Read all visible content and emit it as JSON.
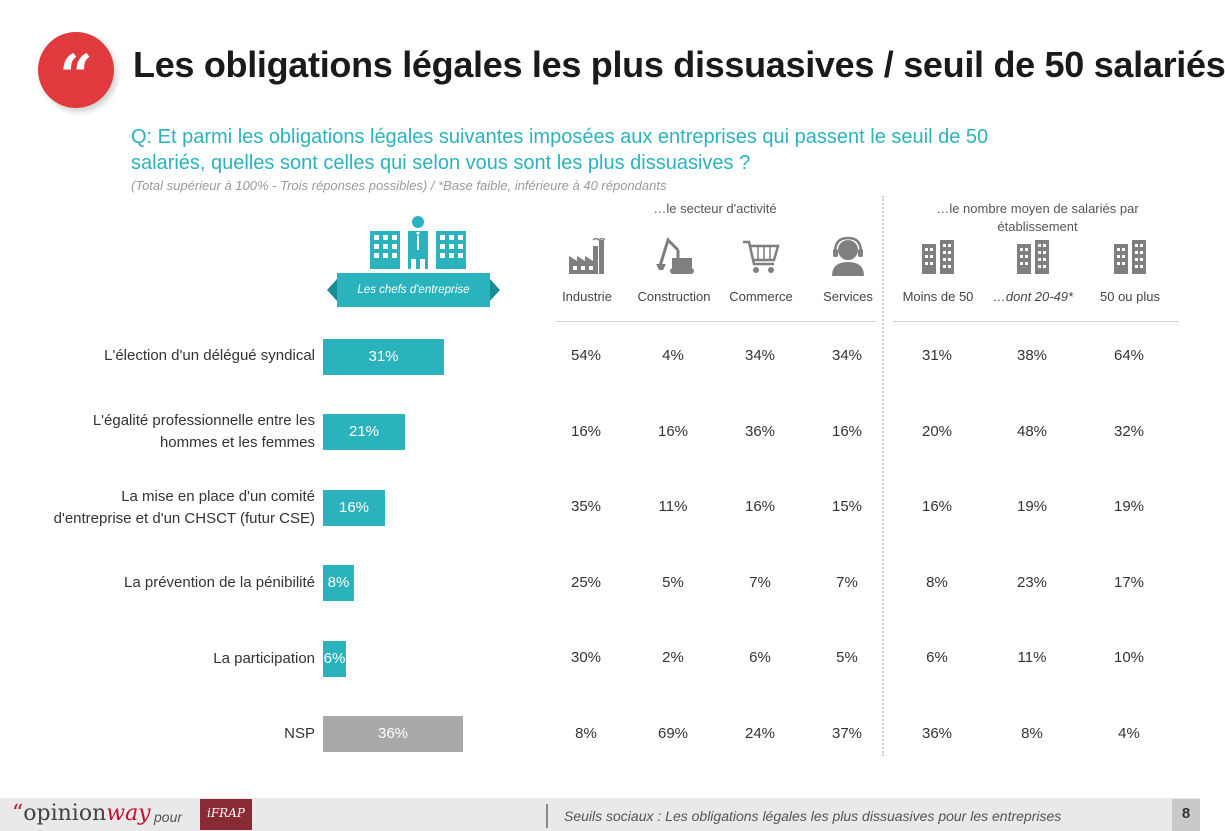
{
  "header": {
    "quote_glyph": "“",
    "title": "Les obligations légales les plus dissuasives / seuil de 50 salariés",
    "question": "Q: Et parmi les obligations légales suivantes imposées aux entreprises qui passent le seuil de 50 salariés, quelles sont celles qui selon vous sont les plus dissuasives ?",
    "note": "(Total supérieur à 100% - Trois réponses possibles) / *Base faible, inférieure à 40 répondants"
  },
  "banner": {
    "label": "Les chefs d'entreprise"
  },
  "groups": {
    "sector": "…le secteur d'activité",
    "size": "…le nombre moyen de salariés par établissement"
  },
  "columns": [
    {
      "label": "Industrie",
      "icon": "factory-icon",
      "italic": false
    },
    {
      "label": "Construction",
      "icon": "crane-icon",
      "italic": false
    },
    {
      "label": "Commerce",
      "icon": "shopping-cart-icon",
      "italic": false
    },
    {
      "label": "Services",
      "icon": "support-agent-icon",
      "italic": false
    },
    {
      "label": "Moins de 50",
      "icon": "building-icon",
      "italic": false
    },
    {
      "label": "…dont 20-49*",
      "icon": "building-icon",
      "italic": true
    },
    {
      "label": "50 ou plus",
      "icon": "building-icon",
      "italic": false
    }
  ],
  "chart_data": {
    "type": "bar",
    "orientation": "horizontal",
    "series": [
      {
        "name": "Les chefs d'entreprise",
        "values": [
          31,
          21,
          16,
          8,
          6,
          36
        ]
      }
    ],
    "categories": [
      "L'élection d'un délégué syndical",
      "L'égalité professionnelle entre les hommes et les femmes",
      "La mise en place d'un comité d'entreprise et d'un CHSCT (futur CSE)",
      "La prévention de la pénibilité",
      "La participation",
      "NSP"
    ],
    "labels": [
      "31%",
      "21%",
      "16%",
      "8%",
      "6%",
      "36%"
    ],
    "colors": [
      "#2ab3bd",
      "#2ab3bd",
      "#2ab3bd",
      "#2ab3bd",
      "#2ab3bd",
      "#a9a9a9"
    ],
    "unit": "%"
  },
  "rows": [
    {
      "label_lines": [
        "L'élection d'un délégué syndical"
      ],
      "cells": [
        "54%",
        "4%",
        "34%",
        "34%",
        "31%",
        "38%",
        "64%"
      ]
    },
    {
      "label_lines": [
        "L'égalité professionnelle entre les",
        "hommes et les femmes"
      ],
      "cells": [
        "16%",
        "16%",
        "36%",
        "16%",
        "20%",
        "48%",
        "32%"
      ]
    },
    {
      "label_lines": [
        "La mise en place d'un comité",
        "d'entreprise et d'un CHSCT (futur CSE)"
      ],
      "cells": [
        "35%",
        "11%",
        "16%",
        "15%",
        "16%",
        "19%",
        "19%"
      ]
    },
    {
      "label_lines": [
        "La prévention de la pénibilité"
      ],
      "cells": [
        "25%",
        "5%",
        "7%",
        "7%",
        "8%",
        "23%",
        "17%"
      ]
    },
    {
      "label_lines": [
        "La participation"
      ],
      "cells": [
        "30%",
        "2%",
        "6%",
        "5%",
        "6%",
        "11%",
        "10%"
      ]
    },
    {
      "label_lines": [
        "NSP"
      ],
      "cells": [
        "8%",
        "69%",
        "24%",
        "37%",
        "36%",
        "8%",
        "4%"
      ]
    }
  ],
  "footer": {
    "brand_quote": "“",
    "brand_opinion": "opinion",
    "brand_way": "way",
    "pour": "pour",
    "partner_logo_text": "iFRAP",
    "text": "Seuils sociaux : Les obligations légales les plus dissuasives pour les entreprises",
    "page": "8"
  }
}
